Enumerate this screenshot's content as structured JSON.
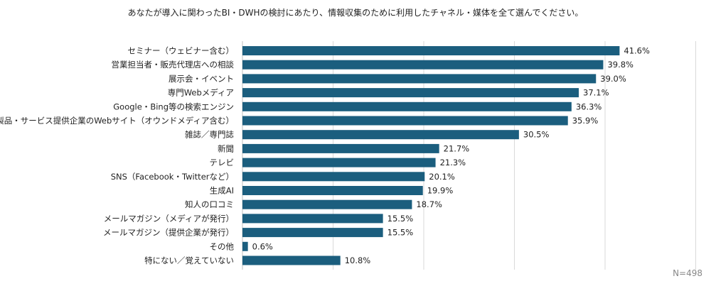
{
  "chart_data": {
    "type": "bar",
    "orientation": "horizontal",
    "title": "あなたが導入に関わったBI・DWHの検討にあたり、情報収集のために利用したチャネル・媒体を全て選んでください。",
    "categories": [
      "セミナー（ウェビナー含む）",
      "営業担当者・販売代理店への相談",
      "展示会・イベント",
      "専門Webメディア",
      "Google・Bing等の検索エンジン",
      "製品・サービス提供企業のWebサイト（オウンドメディア含む）",
      "雑誌／専門誌",
      "新聞",
      "テレビ",
      "SNS（Facebook・Twitterなど）",
      "生成AI",
      "知人の口コミ",
      "メールマガジン（メディアが発行）",
      "メールマガジン（提供企業が発行）",
      "その他",
      "特にない／覚えていない"
    ],
    "values": [
      41.6,
      39.8,
      39.0,
      37.1,
      36.3,
      35.9,
      30.5,
      21.7,
      21.3,
      20.1,
      19.9,
      18.7,
      15.5,
      15.5,
      0.6,
      10.8
    ],
    "value_labels": [
      "41.6%",
      "39.8%",
      "39.0%",
      "37.1%",
      "36.3%",
      "35.9%",
      "30.5%",
      "21.7%",
      "21.3%",
      "20.1%",
      "19.9%",
      "18.7%",
      "15.5%",
      "15.5%",
      "0.6%",
      "10.8%"
    ],
    "xlim": [
      0,
      50
    ],
    "grid": true,
    "bar_color": "#1b5e7e",
    "grid_color": "#d9d9d9",
    "sample_size": "N=498"
  }
}
